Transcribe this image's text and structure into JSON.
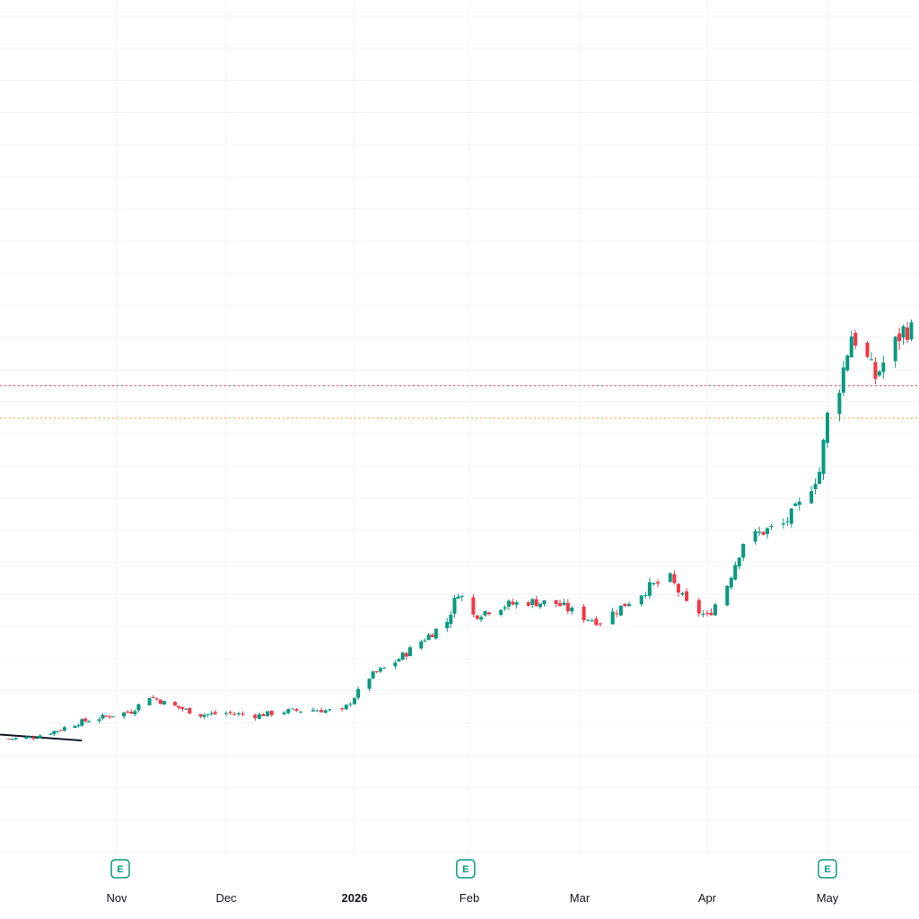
{
  "chart_data": {
    "type": "candlestick",
    "title": "",
    "xlabel": "",
    "ylabel": "",
    "x_tick_labels": [
      {
        "label": "Nov",
        "date": "2025-11-01",
        "bold": false
      },
      {
        "label": "Dec",
        "date": "2025-12-01",
        "bold": false
      },
      {
        "label": "2026",
        "date": "2026-01-01",
        "bold": true
      },
      {
        "label": "Feb",
        "date": "2026-02-01",
        "bold": false
      },
      {
        "label": "Mar",
        "date": "2026-03-01",
        "bold": false
      },
      {
        "label": "Apr",
        "date": "2026-04-01",
        "bold": false
      },
      {
        "label": "May",
        "date": "2026-05-01",
        "bold": false
      }
    ],
    "earnings_markers": [
      {
        "label": "E",
        "date": "2025-11-02"
      },
      {
        "label": "E",
        "date": "2026-01-31"
      },
      {
        "label": "E",
        "date": "2026-05-01"
      }
    ],
    "y_range": [
      0,
      100
    ],
    "horizontal_lines": [
      {
        "name": "red-dotted-level",
        "value": 55.0,
        "color": "#f23645"
      },
      {
        "name": "orange-dotted-level",
        "value": 51.2,
        "color": "#ff9800"
      }
    ],
    "grid": true,
    "colors": {
      "up": "#089981",
      "down": "#f23645",
      "grid": "#f0f3fa",
      "text": "#131722"
    },
    "ohlc_close_path": [
      [
        "2025-10-01",
        13.8
      ],
      [
        "2025-10-08",
        14.0
      ],
      [
        "2025-10-15",
        14.8
      ],
      [
        "2025-10-22",
        15.8
      ],
      [
        "2025-10-29",
        16.4
      ],
      [
        "2025-11-05",
        17.0
      ],
      [
        "2025-11-10",
        18.8
      ],
      [
        "2025-11-14",
        18.0
      ],
      [
        "2025-11-19",
        17.3
      ],
      [
        "2025-11-24",
        16.6
      ],
      [
        "2025-12-01",
        16.8
      ],
      [
        "2025-12-08",
        16.5
      ],
      [
        "2025-12-15",
        17.0
      ],
      [
        "2025-12-22",
        17.2
      ],
      [
        "2025-12-29",
        17.0
      ],
      [
        "2026-01-05",
        21.0
      ],
      [
        "2026-01-12",
        22.8
      ],
      [
        "2026-01-19",
        25.2
      ],
      [
        "2026-01-26",
        27.5
      ],
      [
        "2026-01-29",
        31.0
      ],
      [
        "2026-02-02",
        28.2
      ],
      [
        "2026-02-09",
        29.3
      ],
      [
        "2026-02-16",
        29.8
      ],
      [
        "2026-02-23",
        29.6
      ],
      [
        "2026-03-02",
        28.0
      ],
      [
        "2026-03-06",
        27.5
      ],
      [
        "2026-03-12",
        29.5
      ],
      [
        "2026-03-18",
        31.5
      ],
      [
        "2026-03-23",
        32.5
      ],
      [
        "2026-03-27",
        29.5
      ],
      [
        "2026-04-01",
        28.0
      ],
      [
        "2026-04-06",
        31.8
      ],
      [
        "2026-04-10",
        36.8
      ],
      [
        "2026-04-15",
        38.0
      ],
      [
        "2026-04-20",
        38.8
      ],
      [
        "2026-04-24",
        41.0
      ],
      [
        "2026-04-29",
        45.0
      ],
      [
        "2026-05-01",
        51.5
      ],
      [
        "2026-05-04",
        55.0
      ],
      [
        "2026-05-07",
        61.0
      ],
      [
        "2026-05-10",
        59.0
      ],
      [
        "2026-05-13",
        56.0
      ],
      [
        "2026-05-16",
        58.5
      ],
      [
        "2026-05-20",
        61.5
      ]
    ]
  }
}
